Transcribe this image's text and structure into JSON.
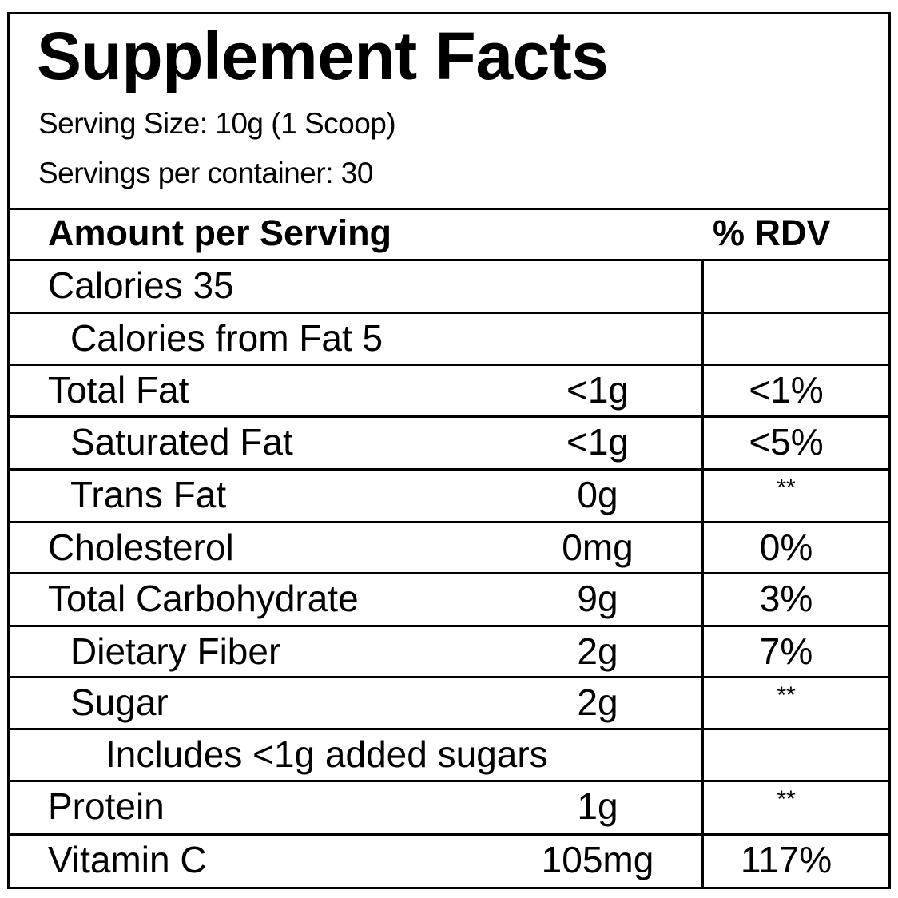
{
  "title": "Supplement Facts",
  "serving_size": "Serving Size: 10g (1 Scoop)",
  "servings_per_container": "Servings per container: 30",
  "header": {
    "amount": "Amount per Serving",
    "rdv": "% RDV"
  },
  "rows": [
    {
      "label": "Calories 35",
      "amount": "",
      "rdv": ""
    },
    {
      "label": "Calories from Fat 5",
      "amount": "",
      "rdv": ""
    },
    {
      "label": "Total Fat",
      "amount": "<1g",
      "rdv": "<1%"
    },
    {
      "label": "Saturated Fat",
      "amount": "<1g",
      "rdv": "<5%"
    },
    {
      "label": "Trans Fat",
      "amount": "0g",
      "rdv": "**"
    },
    {
      "label": "Cholesterol",
      "amount": "0mg",
      "rdv": "0%"
    },
    {
      "label": "Total Carbohydrate",
      "amount": "9g",
      "rdv": "3%"
    },
    {
      "label": "Dietary Fiber",
      "amount": "2g",
      "rdv": "7%"
    },
    {
      "label": "Sugar",
      "amount": "2g",
      "rdv": "**"
    },
    {
      "label": "Includes <1g added sugars",
      "amount": "",
      "rdv": ""
    },
    {
      "label": "Protein",
      "amount": "1g",
      "rdv": "**"
    },
    {
      "label": "Vitamin C",
      "amount": "105mg",
      "rdv": "117%"
    }
  ]
}
